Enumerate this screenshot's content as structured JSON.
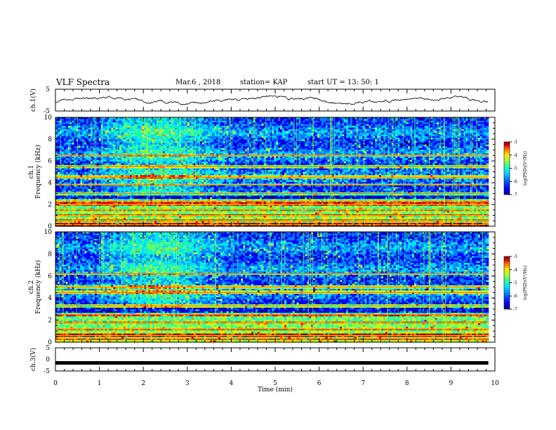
{
  "header": {
    "title": "VLF Spectra",
    "date": "Mar.6  , 2018",
    "station": "station= KAP",
    "start": "start  UT  =   13: 50: 1"
  },
  "chart_data": [
    {
      "type": "line",
      "panel": "ch1-waveform",
      "ylabel": "ch.1(V)",
      "ylim": [
        -5,
        5
      ],
      "yticks": [
        "5",
        "-5"
      ],
      "xlim": [
        0,
        10
      ],
      "note": "noisy amplitude trace oscillating roughly between -2 and 1 V"
    },
    {
      "type": "heatmap",
      "panel": "ch1-spectrogram",
      "ylabel": "ch.1\nFrequency  (kHz)",
      "ylim": [
        0,
        10
      ],
      "yticks": [
        "0",
        "2",
        "4",
        "6",
        "8",
        "10"
      ],
      "xlim": [
        0,
        9.85
      ],
      "colorbar": {
        "label": "log(PSD)(V²/Hz)",
        "range": [
          -7,
          -3
        ],
        "ticks": [
          "-3",
          "-4",
          "-5",
          "-6",
          "-7"
        ]
      },
      "strong_lines_khz": [
        0.15,
        0.55,
        1.0,
        1.5,
        2.0,
        2.3,
        3.0,
        3.8,
        4.5,
        5.5,
        6.5
      ]
    },
    {
      "type": "heatmap",
      "panel": "ch2-spectrogram",
      "ylabel": "ch.2\nFrequency  (kHz)",
      "ylim": [
        0,
        10
      ],
      "yticks": [
        "0",
        "2",
        "4",
        "6",
        "8",
        "10"
      ],
      "xlim": [
        0,
        9.85
      ],
      "colorbar": {
        "label": "log(PSD)(V²/Hz)",
        "range": [
          -7,
          -3
        ],
        "ticks": [
          "-3",
          "-4",
          "-5",
          "-6",
          "-7"
        ]
      },
      "strong_lines_khz": [
        0.2,
        0.6,
        1.2,
        1.8,
        2.5,
        3.3,
        4.5,
        5.0,
        6.2
      ]
    },
    {
      "type": "line",
      "panel": "ch3-waveform",
      "ylabel": "ch.3(V)",
      "ylim": [
        -5,
        5
      ],
      "yticks": [
        "5",
        "0",
        "-5"
      ],
      "xlim": [
        0,
        10
      ],
      "xlabel": "Time  (min)",
      "xticks": [
        "0",
        "1",
        "2",
        "3",
        "4",
        "5",
        "6",
        "7",
        "8",
        "9",
        "10"
      ],
      "constant_value": -1.5
    }
  ],
  "colors": {
    "background": "#ffffff",
    "axes": "#000000",
    "colormap": [
      "#00008f",
      "#0000ff",
      "#0080ff",
      "#00e0ff",
      "#30ff9a",
      "#b0ff2a",
      "#ffe000",
      "#ff7000",
      "#e00000",
      "#800000"
    ]
  }
}
